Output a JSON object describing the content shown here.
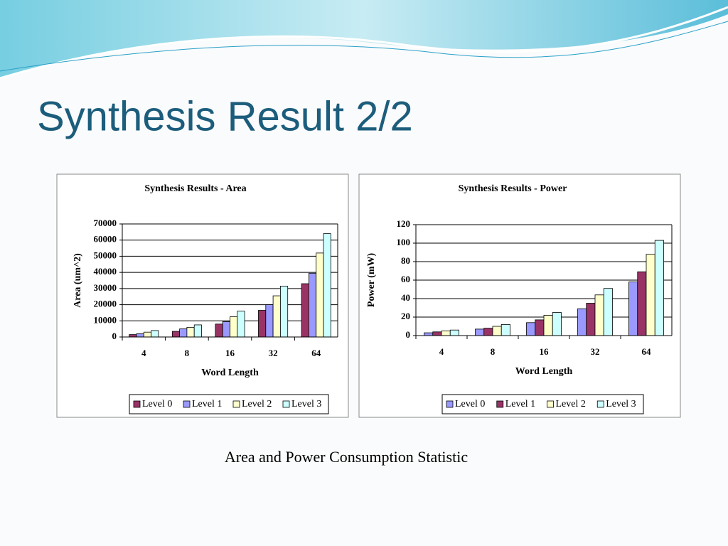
{
  "slide_title": "Synthesis Result 2/2",
  "caption": "Area and Power Consumption Statistic",
  "chart_data": [
    {
      "type": "bar",
      "title": "Synthesis Results - Area",
      "x_label": "Word Length",
      "y_label": "Area (um^2)",
      "categories": [
        "4",
        "8",
        "16",
        "32",
        "64"
      ],
      "series": [
        {
          "name": "Level 0",
          "color": "#993366",
          "values": [
            1500,
            3500,
            8000,
            16500,
            33000
          ]
        },
        {
          "name": "Level 1",
          "color": "#9999ff",
          "values": [
            2000,
            5000,
            9500,
            20000,
            39500
          ]
        },
        {
          "name": "Level 2",
          "color": "#ffffcc",
          "values": [
            3000,
            6000,
            12500,
            25500,
            52000
          ]
        },
        {
          "name": "Level 3",
          "color": "#ccffff",
          "values": [
            4000,
            7500,
            16000,
            31500,
            64000
          ]
        }
      ],
      "ylim": [
        0,
        70000
      ],
      "yticks": [
        0,
        10000,
        20000,
        30000,
        40000,
        50000,
        60000,
        70000
      ],
      "grid": true,
      "legend": "bottom"
    },
    {
      "type": "bar",
      "title": "Synthesis Results - Power",
      "x_label": "Word Length",
      "y_label": "Power (mW)",
      "categories": [
        "4",
        "8",
        "16",
        "32",
        "64"
      ],
      "series": [
        {
          "name": "Level 0",
          "color": "#9999ff",
          "values": [
            3,
            7,
            14,
            29,
            58
          ]
        },
        {
          "name": "Level 1",
          "color": "#993366",
          "values": [
            4,
            8,
            17,
            35,
            69
          ]
        },
        {
          "name": "Level 2",
          "color": "#ffffcc",
          "values": [
            5,
            10,
            22,
            44,
            88
          ]
        },
        {
          "name": "Level 3",
          "color": "#ccffff",
          "values": [
            6,
            12,
            25,
            51,
            103
          ]
        }
      ],
      "ylim": [
        0,
        120
      ],
      "yticks": [
        0,
        20,
        40,
        60,
        80,
        100,
        120
      ],
      "grid": true,
      "legend": "bottom"
    }
  ]
}
